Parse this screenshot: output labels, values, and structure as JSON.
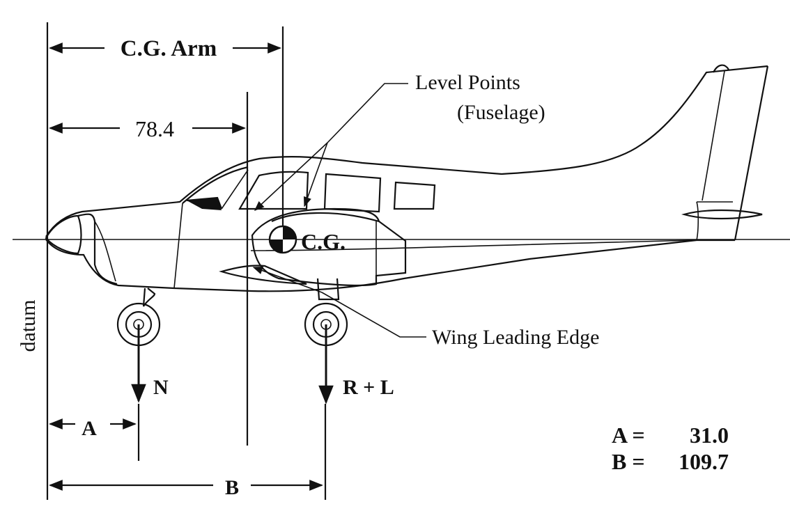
{
  "labels": {
    "cg_arm": "C.G. Arm",
    "dim_78": "78.4",
    "level_points_line1": "Level Points",
    "level_points_line2": "(Fuselage)",
    "cg": "C.G.",
    "wing_leading_edge": "Wing Leading Edge",
    "datum": "datum",
    "nose_wheel": "N",
    "main_wheels": "R + L",
    "dim_a": "A",
    "dim_b": "B"
  },
  "values": {
    "a_label": "A =",
    "a_value": "31.0",
    "b_label": "B =",
    "b_value": "109.7"
  }
}
